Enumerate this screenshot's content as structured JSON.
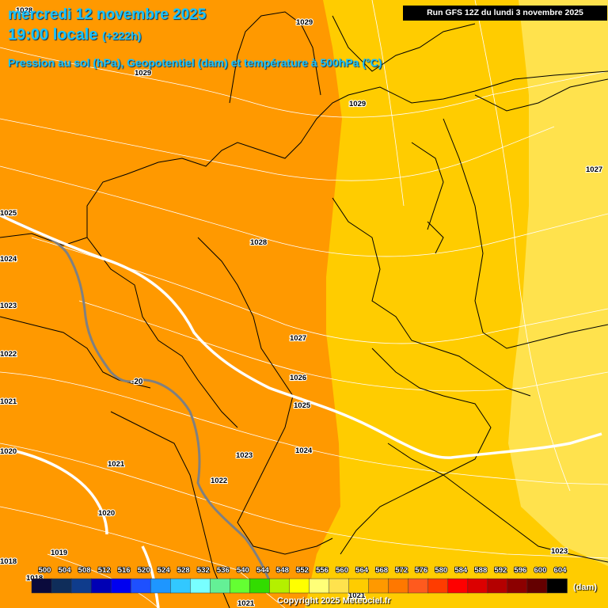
{
  "header": {
    "date": "mercredi 12 novembre 2025",
    "time": "19:00 locale",
    "lead": "(+222h)",
    "parameters": "Pression au sol (hPa), Geopotentiel (dam) et température à 500hPa (°C)",
    "run": "Run GFS 12Z du lundi 3 novembre 2025"
  },
  "footer": {
    "copyright": "Copyright 2025 Meteociel.fr",
    "unit": "(dam)"
  },
  "colors": {
    "orange_zone": "#ff9900",
    "yellow_zone": "#ffcc00",
    "light_yellow_zone": "#ffe24d",
    "isotherm": "#ffffff",
    "isotherm_minus20": "#808080",
    "isobar": "#ffffff",
    "border": "#000000",
    "title_text": "#19c3ff"
  },
  "map": {
    "geopotential_zones_dam": [
      556,
      560,
      564
    ],
    "isotherm_label": "-20",
    "pressure_labels": [
      {
        "value": "1028"
      },
      {
        "value": "1029"
      },
      {
        "value": "1029"
      },
      {
        "value": "1029"
      },
      {
        "value": "1027"
      },
      {
        "value": "1025"
      },
      {
        "value": "1024"
      },
      {
        "value": "1023"
      },
      {
        "value": "1022"
      },
      {
        "value": "1021"
      },
      {
        "value": "1020"
      },
      {
        "value": "1028"
      },
      {
        "value": "1027"
      },
      {
        "value": "1026"
      },
      {
        "value": "1025"
      },
      {
        "value": "1024"
      },
      {
        "value": "1023"
      },
      {
        "value": "1022"
      },
      {
        "value": "1021"
      },
      {
        "value": "1020"
      },
      {
        "value": "1019"
      },
      {
        "value": "1018"
      },
      {
        "value": "1018"
      },
      {
        "value": "1021"
      },
      {
        "value": "1021"
      },
      {
        "value": "1023"
      }
    ]
  },
  "legend": {
    "items": [
      {
        "value": "500",
        "color": "#0a0a3c"
      },
      {
        "value": "504",
        "color": "#0f2d5a"
      },
      {
        "value": "508",
        "color": "#0f3c8c"
      },
      {
        "value": "512",
        "color": "#0000b4"
      },
      {
        "value": "516",
        "color": "#0000f0"
      },
      {
        "value": "520",
        "color": "#1e50ff"
      },
      {
        "value": "524",
        "color": "#1e96ff"
      },
      {
        "value": "528",
        "color": "#32c8ff"
      },
      {
        "value": "532",
        "color": "#78ffff"
      },
      {
        "value": "536",
        "color": "#64f096"
      },
      {
        "value": "540",
        "color": "#64ff32"
      },
      {
        "value": "544",
        "color": "#32dc00"
      },
      {
        "value": "548",
        "color": "#b4f000"
      },
      {
        "value": "552",
        "color": "#ffff00"
      },
      {
        "value": "556",
        "color": "#ffff78"
      },
      {
        "value": "560",
        "color": "#ffe24d"
      },
      {
        "value": "564",
        "color": "#ffcc00"
      },
      {
        "value": "568",
        "color": "#ff9900"
      },
      {
        "value": "572",
        "color": "#ff7800"
      },
      {
        "value": "576",
        "color": "#ff5a1e"
      },
      {
        "value": "580",
        "color": "#ff3c00"
      },
      {
        "value": "584",
        "color": "#ff0000"
      },
      {
        "value": "588",
        "color": "#dc0000"
      },
      {
        "value": "592",
        "color": "#b40000"
      },
      {
        "value": "596",
        "color": "#8c0000"
      },
      {
        "value": "600",
        "color": "#640000"
      },
      {
        "value": "604",
        "color": "#000000"
      }
    ]
  }
}
